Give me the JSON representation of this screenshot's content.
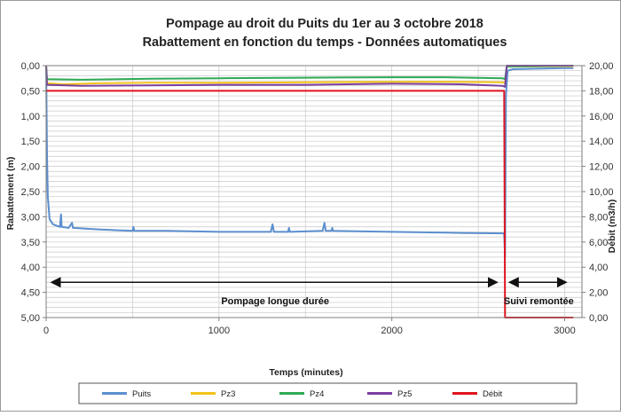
{
  "chart_data": {
    "type": "line",
    "title_line1": "Pompage au droit du Puits du 1er au 3 octobre 2018",
    "title_line2": "Rabattement en fonction du temps - Données automatiques",
    "xlabel": "Temps (minutes)",
    "ylabel_left": "Rabattement (m)",
    "ylabel_right": "Débit (m3/h)",
    "xlim": [
      0,
      3100
    ],
    "x_ticks": [
      0,
      1000,
      2000,
      3000
    ],
    "x_tick_labels": [
      "0",
      "1000",
      "2000",
      "3000"
    ],
    "ylim_left": [
      0,
      5
    ],
    "y_left_inverted": true,
    "y_left_tick_labels": [
      "0,00",
      "0,50",
      "1,00",
      "1,50",
      "2,00",
      "2,50",
      "3,00",
      "3,50",
      "4,00",
      "4,50",
      "5,00"
    ],
    "y_left_ticks": [
      0,
      0.5,
      1,
      1.5,
      2,
      2.5,
      3,
      3.5,
      4,
      4.5,
      5
    ],
    "ylim_right": [
      0,
      20
    ],
    "y_right_tick_labels": [
      "0,00",
      "2,00",
      "4,00",
      "6,00",
      "8,00",
      "10,00",
      "12,00",
      "14,00",
      "16,00",
      "18,00",
      "20,00"
    ],
    "y_right_ticks": [
      0,
      2,
      4,
      6,
      8,
      10,
      12,
      14,
      16,
      18,
      20
    ],
    "grid": true,
    "legend_position": "bottom",
    "series": [
      {
        "name": "Puits",
        "color": "#5b8fcf",
        "axis": "left",
        "points": [
          [
            0,
            0.0
          ],
          [
            5,
            1.8
          ],
          [
            10,
            2.6
          ],
          [
            20,
            3.05
          ],
          [
            40,
            3.15
          ],
          [
            80,
            3.2
          ],
          [
            86,
            2.95
          ],
          [
            90,
            3.2
          ],
          [
            130,
            3.22
          ],
          [
            150,
            3.12
          ],
          [
            155,
            3.22
          ],
          [
            300,
            3.25
          ],
          [
            500,
            3.28
          ],
          [
            505,
            3.2
          ],
          [
            510,
            3.28
          ],
          [
            700,
            3.28
          ],
          [
            1000,
            3.3
          ],
          [
            1300,
            3.3
          ],
          [
            1310,
            3.15
          ],
          [
            1318,
            3.3
          ],
          [
            1400,
            3.3
          ],
          [
            1405,
            3.22
          ],
          [
            1410,
            3.3
          ],
          [
            1600,
            3.28
          ],
          [
            1610,
            3.12
          ],
          [
            1618,
            3.28
          ],
          [
            1650,
            3.28
          ],
          [
            1655,
            3.22
          ],
          [
            1660,
            3.28
          ],
          [
            2000,
            3.3
          ],
          [
            2400,
            3.32
          ],
          [
            2650,
            3.33
          ],
          [
            2655,
            3.8
          ],
          [
            2660,
            0.6
          ],
          [
            2670,
            0.1
          ],
          [
            2700,
            0.07
          ],
          [
            3000,
            0.05
          ],
          [
            3050,
            0.05
          ]
        ]
      },
      {
        "name": "Pz3",
        "color": "#f2c21a",
        "axis": "left",
        "points": [
          [
            0,
            0.0
          ],
          [
            5,
            0.35
          ],
          [
            100,
            0.37
          ],
          [
            300,
            0.35
          ],
          [
            600,
            0.34
          ],
          [
            1000,
            0.34
          ],
          [
            1500,
            0.33
          ],
          [
            2000,
            0.32
          ],
          [
            2300,
            0.32
          ],
          [
            2640,
            0.33
          ],
          [
            2655,
            0.35
          ],
          [
            2665,
            0.02
          ],
          [
            3050,
            0.01
          ]
        ]
      },
      {
        "name": "Pz4",
        "color": "#2eaa55",
        "axis": "left",
        "points": [
          [
            0,
            0.0
          ],
          [
            5,
            0.27
          ],
          [
            200,
            0.28
          ],
          [
            600,
            0.26
          ],
          [
            1000,
            0.25
          ],
          [
            1500,
            0.24
          ],
          [
            2000,
            0.23
          ],
          [
            2300,
            0.23
          ],
          [
            2640,
            0.25
          ],
          [
            2655,
            0.27
          ],
          [
            2665,
            0.02
          ],
          [
            3050,
            0.0
          ]
        ]
      },
      {
        "name": "Pz5",
        "color": "#7a3fa0",
        "axis": "left",
        "points": [
          [
            0,
            0.0
          ],
          [
            5,
            0.38
          ],
          [
            200,
            0.4
          ],
          [
            600,
            0.39
          ],
          [
            1000,
            0.38
          ],
          [
            1500,
            0.38
          ],
          [
            2000,
            0.36
          ],
          [
            2400,
            0.37
          ],
          [
            2640,
            0.4
          ],
          [
            2655,
            0.42
          ],
          [
            2665,
            0.0
          ],
          [
            3050,
            0.0
          ]
        ]
      },
      {
        "name": "Débit",
        "color": "#e0141e",
        "axis": "right",
        "points": [
          [
            0,
            18.0
          ],
          [
            2650,
            18.0
          ],
          [
            2655,
            0.0
          ],
          [
            3050,
            0.0
          ]
        ]
      }
    ],
    "annotations": [
      {
        "text": "Pompage longue durée",
        "x_from": 0,
        "x_to": 2650,
        "y": 4.3
      },
      {
        "text": "Suivi remontée",
        "x_from": 2650,
        "x_to": 3050,
        "y": 4.3
      }
    ]
  }
}
